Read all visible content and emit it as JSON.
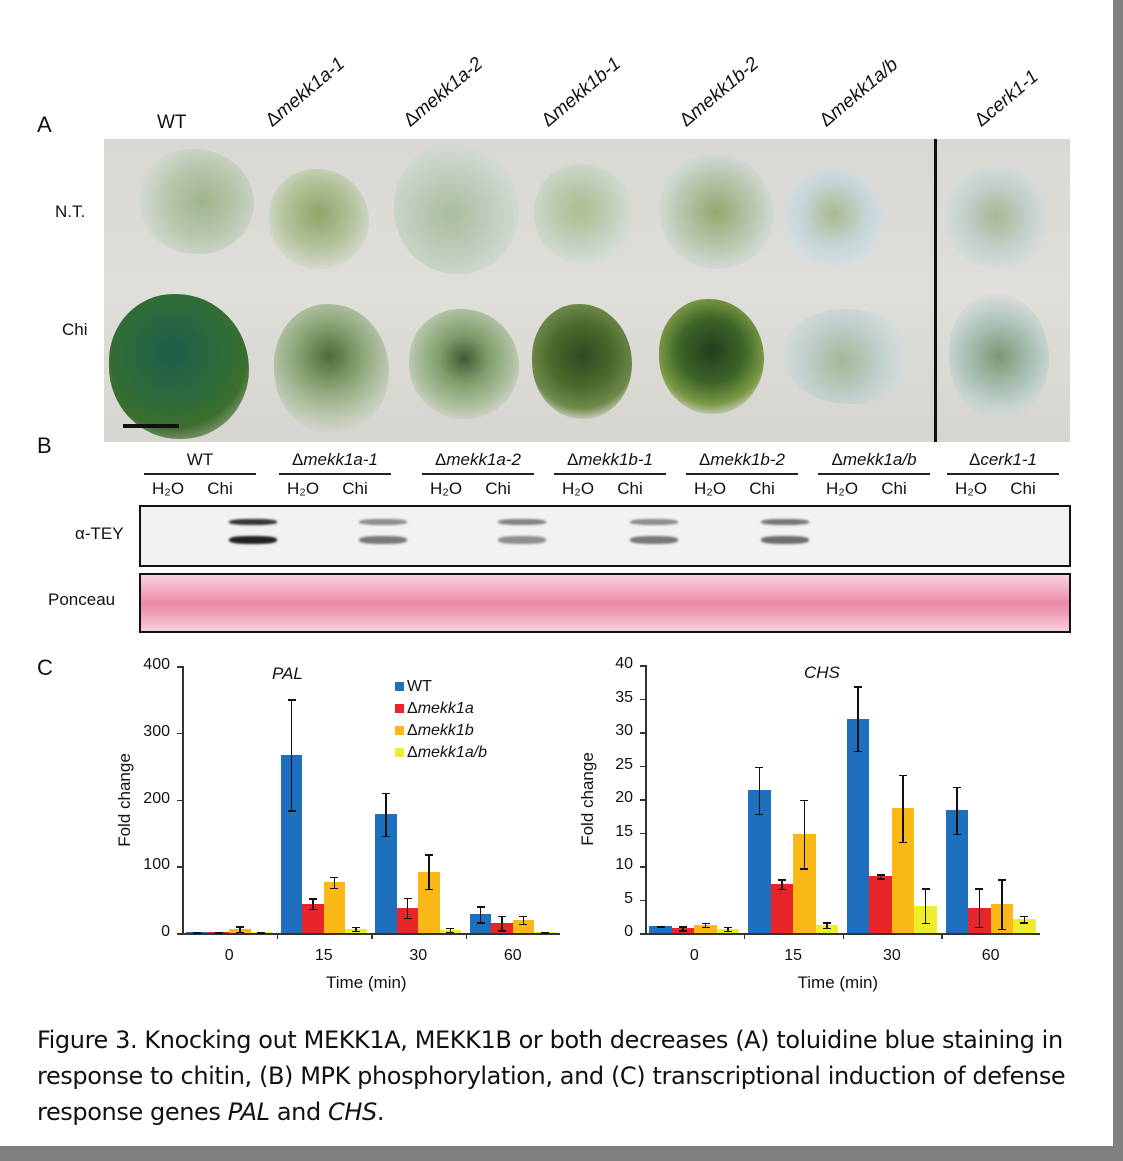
{
  "figure": {
    "panel_a": {
      "letter": "A",
      "strains": [
        "WT",
        "mekk1a-1",
        "mekk1a-2",
        "mekk1b-1",
        "mekk1b-2",
        "mekk1a/b",
        "cerk1-1"
      ],
      "delta_symbol": "Δ",
      "row_labels": [
        "N.T.",
        "Chi"
      ]
    },
    "panel_b": {
      "letter": "B",
      "strains": [
        "WT",
        "Δmekk1a-1",
        "Δmekk1a-2",
        "Δmekk1b-1",
        "Δmekk1b-2",
        "Δmekk1a/b",
        "Δcerk1-1"
      ],
      "lane_labels": [
        "H₂O",
        "Chi"
      ],
      "blot_labels": [
        "α-TEY",
        "Ponceau"
      ]
    },
    "panel_c": {
      "letter": "C"
    },
    "caption": {
      "prefix": "Figure 3. Knocking out MEKK1A, MEKK1B or both decreases (A) toluidine blue staining in response to chitin, (B) MPK phosphorylation, and (C) transcriptional induction of defense response genes ",
      "gene1": "PAL",
      "mid": " and ",
      "gene2": "CHS",
      "suffix": "."
    }
  },
  "chart_data": [
    {
      "type": "bar",
      "title": "PAL",
      "xlabel": "Time (min)",
      "ylabel": "Fold change",
      "categories": [
        "0",
        "15",
        "30",
        "60"
      ],
      "ylim": [
        0,
        400
      ],
      "yticks": [
        0,
        100,
        200,
        300,
        400
      ],
      "grid": false,
      "legend_position": "upper right inside",
      "series": [
        {
          "name": "WT",
          "color": "#1f6fbf",
          "values": [
            1,
            267,
            178,
            28
          ],
          "errors": [
            0.5,
            83,
            32,
            12
          ]
        },
        {
          "name": "Δmekk1a",
          "color": "#e8262a",
          "values": [
            1,
            44,
            38,
            15
          ],
          "errors": [
            0.5,
            8,
            15,
            11
          ]
        },
        {
          "name": "Δmekk1b",
          "color": "#fbb917",
          "values": [
            6,
            76,
            92,
            20
          ],
          "errors": [
            4,
            8,
            26,
            6
          ]
        },
        {
          "name": "Δmekk1a/b",
          "color": "#eded2a",
          "values": [
            1,
            6,
            5,
            1
          ],
          "errors": [
            0.5,
            3,
            3,
            0.5
          ]
        }
      ]
    },
    {
      "type": "bar",
      "title": "CHS",
      "xlabel": "Time (min)",
      "ylabel": "Fold change",
      "categories": [
        "0",
        "15",
        "30",
        "60"
      ],
      "ylim": [
        0,
        40
      ],
      "yticks": [
        0,
        5,
        10,
        15,
        20,
        25,
        30,
        35,
        40
      ],
      "grid": false,
      "series": [
        {
          "name": "WT",
          "color": "#1f6fbf",
          "values": [
            1.0,
            21.3,
            32.0,
            18.3
          ],
          "errors": [
            0.1,
            3.5,
            4.8,
            3.5
          ]
        },
        {
          "name": "Δmekk1a",
          "color": "#e8262a",
          "values": [
            0.7,
            7.3,
            8.5,
            3.8
          ],
          "errors": [
            0.3,
            0.7,
            0.3,
            2.9
          ]
        },
        {
          "name": "Δmekk1b",
          "color": "#fbb917",
          "values": [
            1.2,
            14.8,
            18.6,
            4.3
          ],
          "errors": [
            0.3,
            5.1,
            5.0,
            3.7
          ]
        },
        {
          "name": "Δmekk1a/b",
          "color": "#eded2a",
          "values": [
            0.6,
            1.2,
            4.1,
            2.1
          ],
          "errors": [
            0.3,
            0.4,
            2.6,
            0.5
          ]
        }
      ]
    }
  ]
}
